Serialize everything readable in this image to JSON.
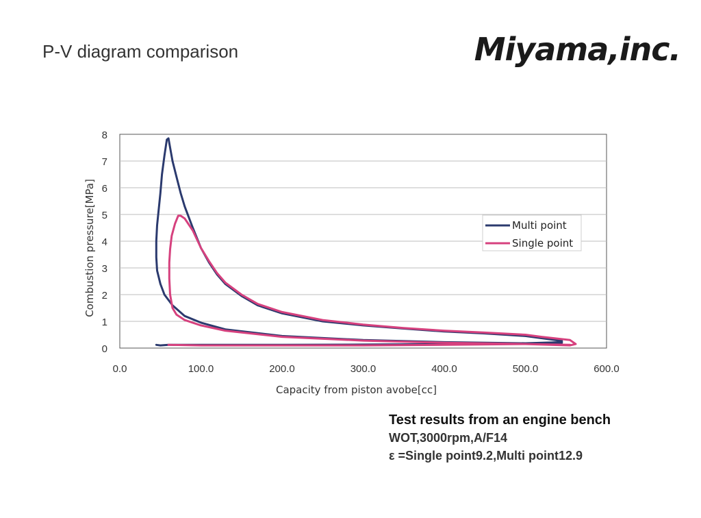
{
  "slide": {
    "title": "P-V diagram comparison",
    "logo_text": "Miyama,inc."
  },
  "notes": {
    "heading": "Test results from an engine bench",
    "line1": "WOT,3000rpm,A/F14",
    "line2": " ε =Single point9.2,Multi point12.9"
  },
  "chart_data": {
    "type": "line",
    "title": "",
    "xlabel": "Capacity from piston avobe[cc]",
    "ylabel": "Combustion pressure[MPa]",
    "xlim": [
      0,
      600
    ],
    "ylim": [
      0,
      8
    ],
    "x_ticks": [
      "0.0",
      "100.0",
      "200.0",
      "300.0",
      "400.0",
      "500.0",
      "600.0"
    ],
    "y_ticks": [
      "0",
      "1",
      "2",
      "3",
      "4",
      "5",
      "6",
      "7",
      "8"
    ],
    "grid": "horizontal",
    "legend_position": "right",
    "series": [
      {
        "name": "Multi point",
        "color": "#2b3a6e",
        "points": [
          [
            45,
            0.12
          ],
          [
            50,
            0.1
          ],
          [
            60,
            0.12
          ],
          [
            100,
            0.12
          ],
          [
            200,
            0.12
          ],
          [
            300,
            0.13
          ],
          [
            400,
            0.15
          ],
          [
            500,
            0.18
          ],
          [
            545,
            0.22
          ],
          [
            545,
            0.27
          ],
          [
            500,
            0.45
          ],
          [
            450,
            0.55
          ],
          [
            400,
            0.62
          ],
          [
            350,
            0.73
          ],
          [
            300,
            0.85
          ],
          [
            250,
            1.0
          ],
          [
            200,
            1.3
          ],
          [
            170,
            1.6
          ],
          [
            150,
            1.95
          ],
          [
            130,
            2.4
          ],
          [
            120,
            2.75
          ],
          [
            110,
            3.2
          ],
          [
            100,
            3.75
          ],
          [
            90,
            4.5
          ],
          [
            80,
            5.3
          ],
          [
            75,
            5.8
          ],
          [
            70,
            6.4
          ],
          [
            65,
            7.0
          ],
          [
            62,
            7.5
          ],
          [
            60,
            7.85
          ],
          [
            58,
            7.8
          ],
          [
            55,
            7.2
          ],
          [
            52,
            6.5
          ],
          [
            50,
            5.8
          ],
          [
            48,
            5.2
          ],
          [
            46,
            4.6
          ],
          [
            45,
            4.0
          ],
          [
            45,
            3.4
          ],
          [
            46,
            2.9
          ],
          [
            50,
            2.4
          ],
          [
            55,
            2.0
          ],
          [
            65,
            1.6
          ],
          [
            80,
            1.2
          ],
          [
            100,
            0.95
          ],
          [
            130,
            0.7
          ],
          [
            200,
            0.45
          ],
          [
            300,
            0.3
          ],
          [
            400,
            0.22
          ],
          [
            500,
            0.18
          ],
          [
            545,
            0.2
          ]
        ]
      },
      {
        "name": "Single point",
        "color": "#d6417e",
        "points": [
          [
            60,
            0.12
          ],
          [
            100,
            0.1
          ],
          [
            200,
            0.1
          ],
          [
            300,
            0.1
          ],
          [
            400,
            0.12
          ],
          [
            500,
            0.15
          ],
          [
            555,
            0.1
          ],
          [
            562,
            0.15
          ],
          [
            555,
            0.3
          ],
          [
            520,
            0.42
          ],
          [
            500,
            0.5
          ],
          [
            450,
            0.58
          ],
          [
            400,
            0.65
          ],
          [
            350,
            0.75
          ],
          [
            300,
            0.88
          ],
          [
            250,
            1.05
          ],
          [
            200,
            1.35
          ],
          [
            170,
            1.65
          ],
          [
            150,
            2.0
          ],
          [
            130,
            2.45
          ],
          [
            120,
            2.8
          ],
          [
            110,
            3.25
          ],
          [
            100,
            3.75
          ],
          [
            90,
            4.4
          ],
          [
            80,
            4.85
          ],
          [
            75,
            4.95
          ],
          [
            72,
            4.95
          ],
          [
            68,
            4.65
          ],
          [
            64,
            4.2
          ],
          [
            62,
            3.7
          ],
          [
            61,
            3.2
          ],
          [
            61,
            2.6
          ],
          [
            62,
            2.0
          ],
          [
            65,
            1.5
          ],
          [
            70,
            1.25
          ],
          [
            80,
            1.05
          ],
          [
            100,
            0.85
          ],
          [
            130,
            0.65
          ],
          [
            200,
            0.42
          ],
          [
            300,
            0.28
          ],
          [
            400,
            0.2
          ],
          [
            500,
            0.15
          ],
          [
            555,
            0.12
          ]
        ]
      }
    ]
  }
}
